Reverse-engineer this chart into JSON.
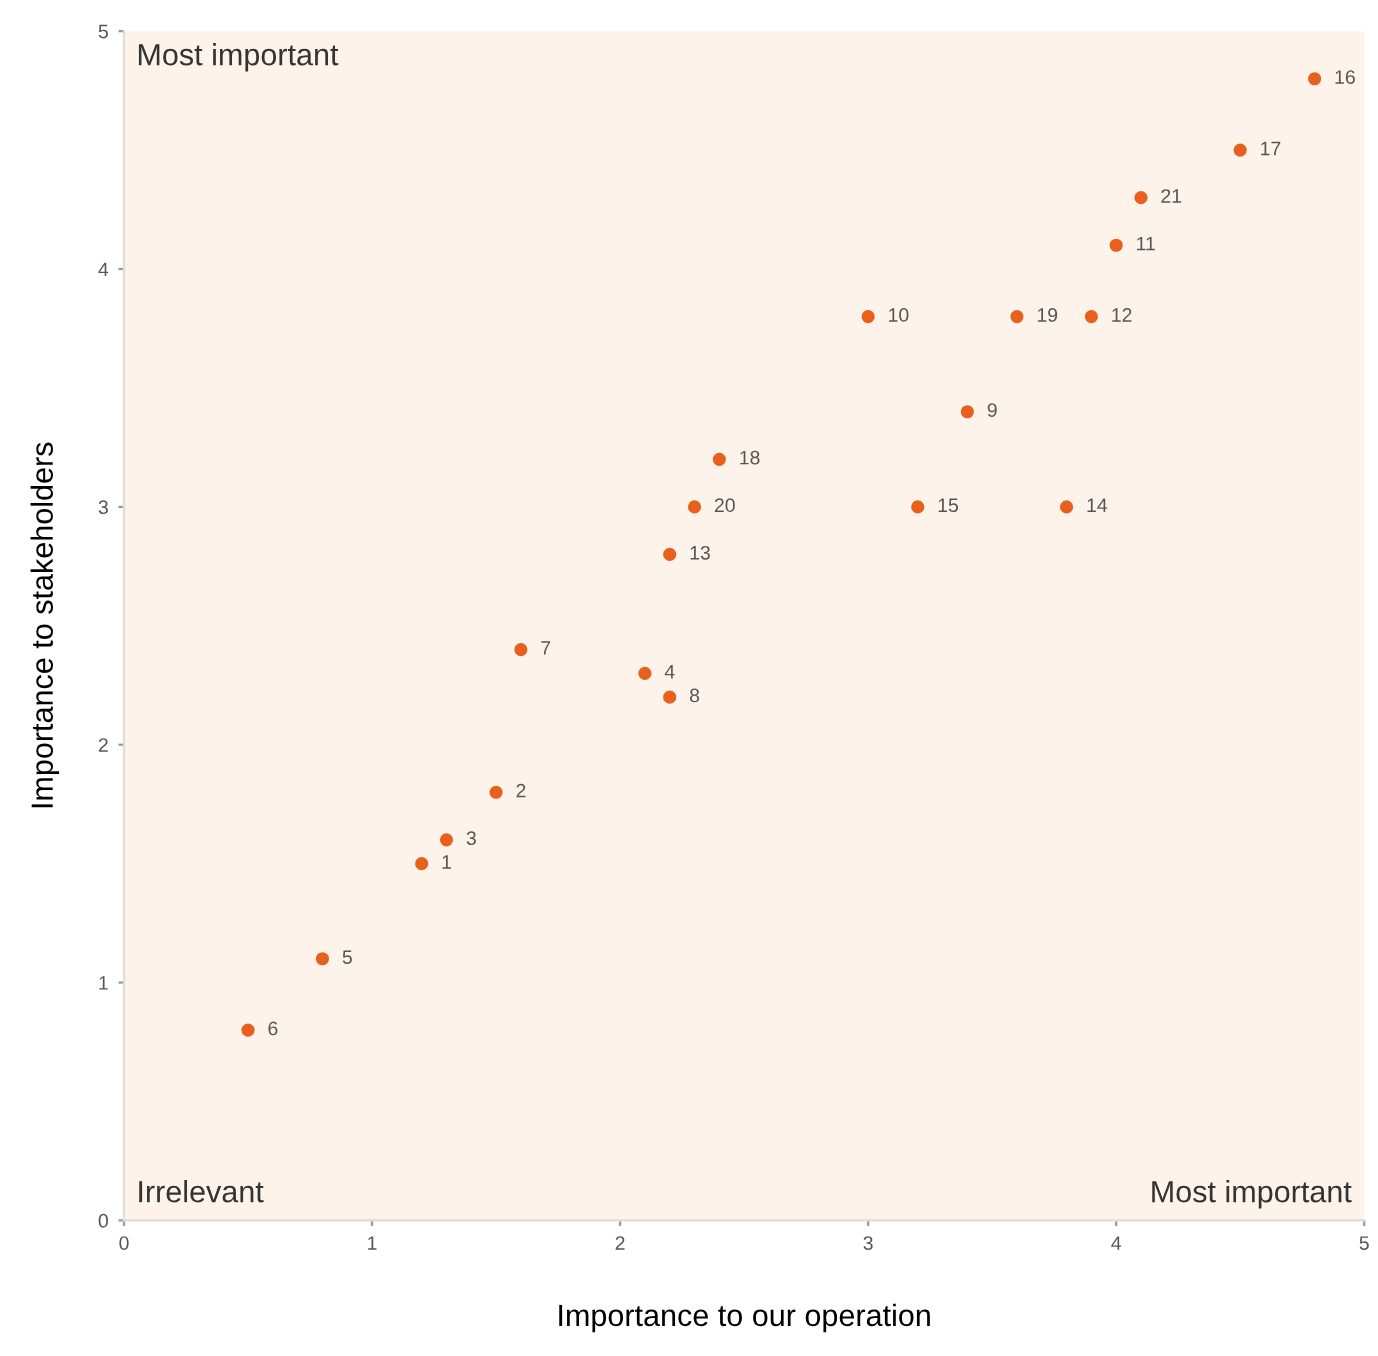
{
  "chart_data": {
    "type": "scatter",
    "xlabel": "Importance to our operation",
    "ylabel": "Importance to stakeholders",
    "xlim": [
      0,
      5
    ],
    "ylim": [
      0,
      5
    ],
    "xticks": [
      0,
      1,
      2,
      3,
      4,
      5
    ],
    "yticks": [
      0,
      1,
      2,
      3,
      4,
      5
    ],
    "grid": false,
    "marker": "circle",
    "series": [
      {
        "color": "#e8601c",
        "x": [
          0.5,
          0.8,
          1.2,
          1.3,
          1.5,
          1.6,
          2.1,
          2.2,
          2.2,
          2.3,
          2.4,
          3.0,
          3.2,
          3.4,
          3.6,
          3.9,
          3.8,
          4.0,
          4.1,
          4.5,
          4.8
        ],
        "values": [
          0.8,
          1.1,
          1.5,
          1.6,
          1.8,
          2.4,
          2.3,
          2.2,
          2.8,
          3.0,
          3.2,
          3.8,
          3.0,
          3.4,
          3.8,
          3.8,
          3.0,
          4.1,
          4.3,
          4.5,
          4.8
        ]
      }
    ],
    "annotations": [
      "Most important",
      "Irrelevant",
      "Most important",
      {
        "text": "6",
        "x": 0.5,
        "y": 0.8
      },
      {
        "text": "5",
        "x": 0.8,
        "y": 1.1
      },
      {
        "text": "1",
        "x": 1.2,
        "y": 1.5
      },
      {
        "text": "3",
        "x": 1.3,
        "y": 1.6
      },
      {
        "text": "2",
        "x": 1.5,
        "y": 1.8
      },
      {
        "text": "7",
        "x": 1.6,
        "y": 2.4
      },
      {
        "text": "4",
        "x": 2.1,
        "y": 2.3
      },
      {
        "text": "8",
        "x": 2.2,
        "y": 2.2
      },
      {
        "text": "13",
        "x": 2.2,
        "y": 2.8
      },
      {
        "text": "20",
        "x": 2.3,
        "y": 3.0
      },
      {
        "text": "18",
        "x": 2.4,
        "y": 3.2
      },
      {
        "text": "10",
        "x": 3.0,
        "y": 3.8
      },
      {
        "text": "15",
        "x": 3.2,
        "y": 3.0
      },
      {
        "text": "9",
        "x": 3.4,
        "y": 3.4
      },
      {
        "text": "19",
        "x": 3.6,
        "y": 3.8
      },
      {
        "text": "12",
        "x": 3.9,
        "y": 3.8
      },
      {
        "text": "14",
        "x": 3.8,
        "y": 3.0
      },
      {
        "text": "11",
        "x": 4.0,
        "y": 4.1
      },
      {
        "text": "21",
        "x": 4.1,
        "y": 4.3
      },
      {
        "text": "17",
        "x": 4.5,
        "y": 4.5
      },
      {
        "text": "16",
        "x": 4.8,
        "y": 4.8
      }
    ]
  }
}
